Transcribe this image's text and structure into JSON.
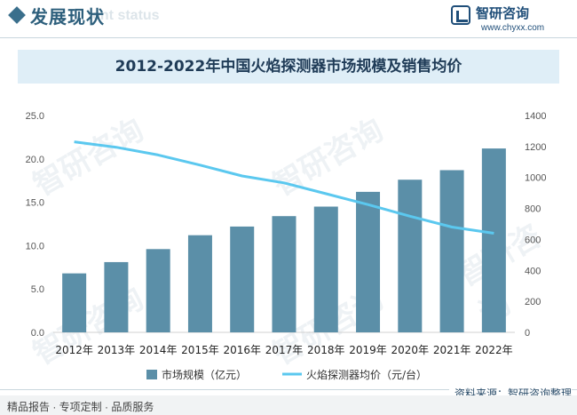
{
  "header": {
    "section_title": "发展现状",
    "section_subtitle": "ent status",
    "logo_name": "智研咨询",
    "logo_url": "www.chyxx.com"
  },
  "watermark_text": "智研咨询",
  "chart_data": {
    "type": "bar",
    "title": "2012-2022年中国火焰探测器市场规模及销售均价",
    "categories": [
      "2012年",
      "2013年",
      "2014年",
      "2015年",
      "2016年",
      "2017年",
      "2018年",
      "2019年",
      "2020年",
      "2021年",
      "2022年"
    ],
    "series": [
      {
        "name": "市场规模（亿元）",
        "type": "bar",
        "axis": "left",
        "color": "#5b8fa8",
        "values": [
          6.8,
          8.1,
          9.6,
          11.2,
          12.2,
          13.4,
          14.5,
          16.2,
          17.6,
          18.7,
          21.2
        ]
      },
      {
        "name": "火焰探测器均价（元/台）",
        "type": "line",
        "axis": "right",
        "color": "#5bc8ef",
        "values": [
          1230,
          1195,
          1145,
          1080,
          1010,
          965,
          895,
          825,
          750,
          680,
          640
        ]
      }
    ],
    "y_left": {
      "min": 0,
      "max": 25,
      "ticks": [
        "0.0",
        "5.0",
        "10.0",
        "15.0",
        "20.0",
        "25.0"
      ]
    },
    "y_right": {
      "min": 0,
      "max": 1400,
      "ticks": [
        "0",
        "200",
        "400",
        "600",
        "800",
        "1000",
        "1200",
        "1400"
      ]
    },
    "grid": false,
    "legend_position": "bottom"
  },
  "footer": {
    "source": "资料来源：智研咨询整理",
    "left_text": "精品报告 · 专项定制 · 品质服务"
  }
}
